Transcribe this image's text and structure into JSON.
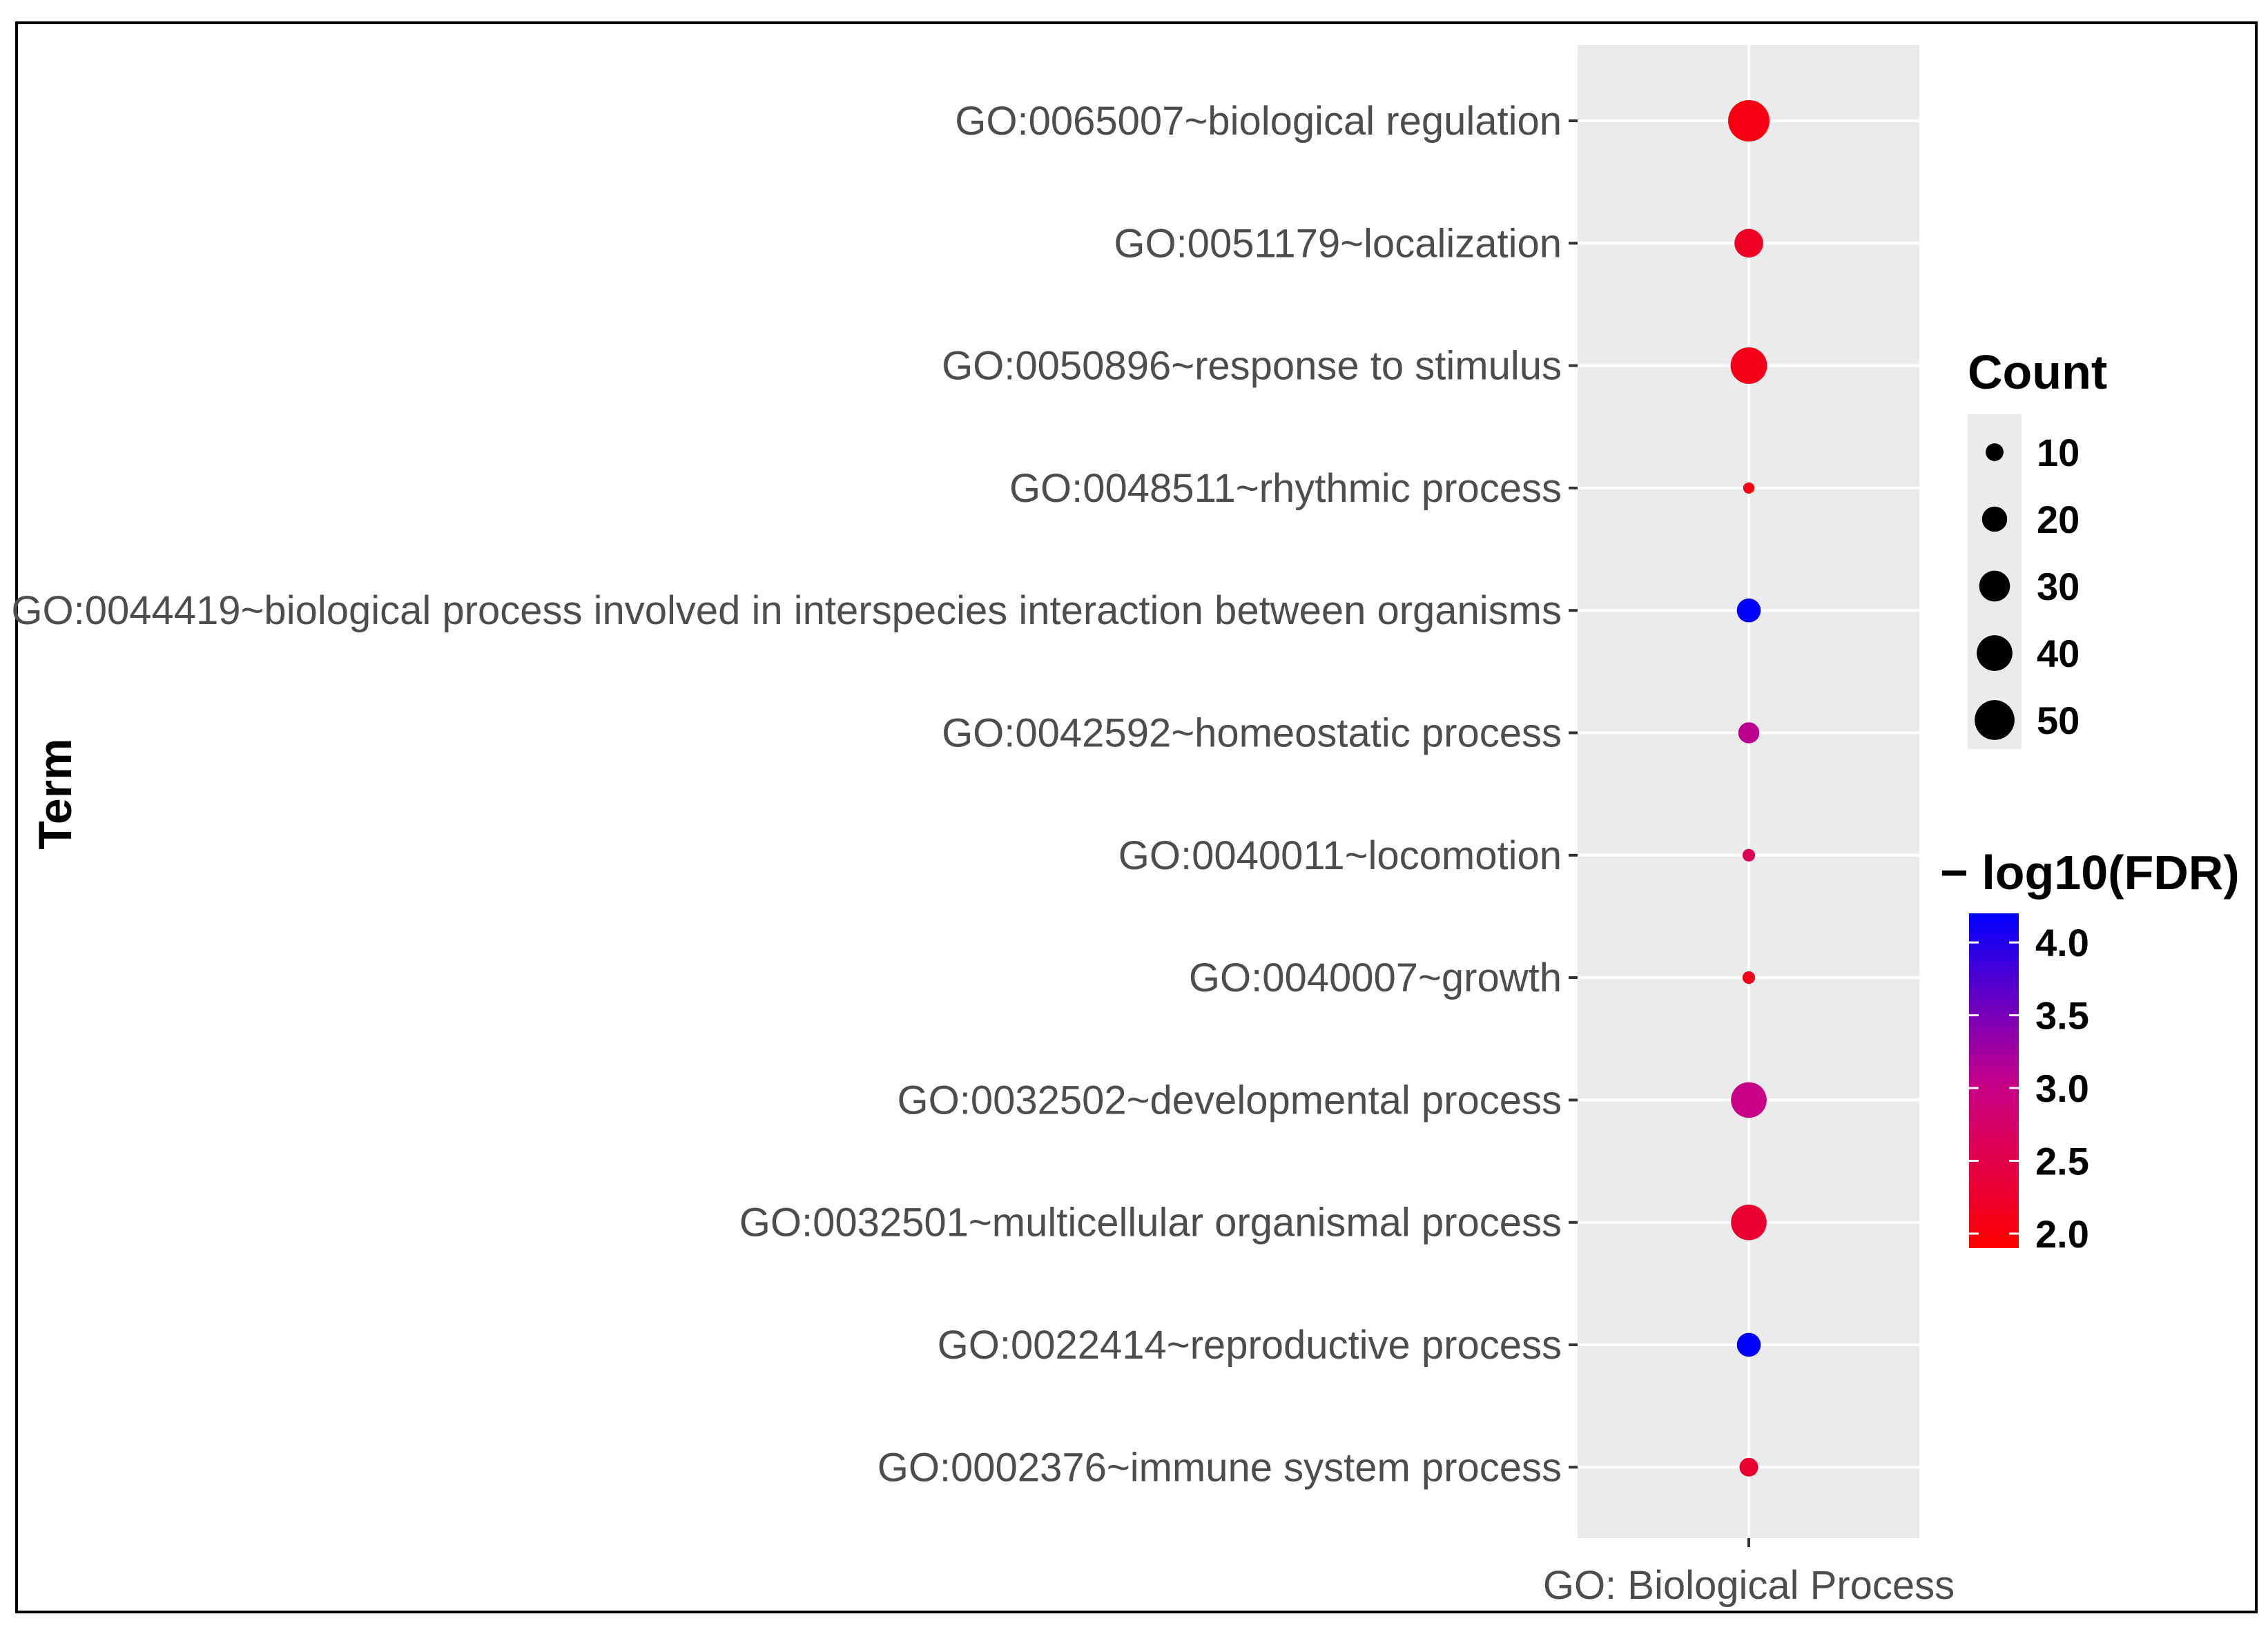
{
  "chart_data": {
    "type": "scatter",
    "x_categories": [
      "GO: Biological Process"
    ],
    "y_categories": [
      "GO:0065007~biological regulation",
      "GO:0051179~localization",
      "GO:0050896~response to stimulus",
      "GO:0048511~rhythmic process",
      "GO:0044419~biological process involved in interspecies interaction between organisms",
      "GO:0042592~homeostatic process",
      "GO:0040011~locomotion",
      "GO:0040007~growth",
      "GO:0032502~developmental process",
      "GO:0032501~multicellular organismal process",
      "GO:0022414~reproductive process",
      "GO:0002376~immune system process"
    ],
    "points": [
      {
        "term": "GO:0065007~biological regulation",
        "count": 54,
        "neg_log10_fdr": 2.05
      },
      {
        "term": "GO:0051179~localization",
        "count": 26,
        "neg_log10_fdr": 2.2
      },
      {
        "term": "GO:0050896~response to stimulus",
        "count": 42,
        "neg_log10_fdr": 2.1
      },
      {
        "term": "GO:0048511~rhythmic process",
        "count": 4,
        "neg_log10_fdr": 2.05
      },
      {
        "term": "GO:0044419~biological process involved in interspecies interaction between organisms",
        "count": 18,
        "neg_log10_fdr": 4.2
      },
      {
        "term": "GO:0042592~homeostatic process",
        "count": 14,
        "neg_log10_fdr": 3.1
      },
      {
        "term": "GO:0040011~locomotion",
        "count": 5,
        "neg_log10_fdr": 2.6
      },
      {
        "term": "GO:0040007~growth",
        "count": 5,
        "neg_log10_fdr": 2.1
      },
      {
        "term": "GO:0032502~developmental process",
        "count": 40,
        "neg_log10_fdr": 3.0
      },
      {
        "term": "GO:0032501~multicellular organismal process",
        "count": 40,
        "neg_log10_fdr": 2.3
      },
      {
        "term": "GO:0022414~reproductive process",
        "count": 18,
        "neg_log10_fdr": 4.2
      },
      {
        "term": "GO:0002376~immune system process",
        "count": 11,
        "neg_log10_fdr": 2.3
      }
    ],
    "ylabel": "Term",
    "xlabel": "",
    "size_legend": {
      "title": "Count",
      "values": [
        10,
        20,
        30,
        40,
        50
      ]
    },
    "color_legend": {
      "title": "− log10(FDR)",
      "min": 1.9,
      "max": 4.2,
      "ticks": [
        "4.0",
        "3.5",
        "3.0",
        "2.5",
        "2.0"
      ],
      "low_color": "#ff0000",
      "high_color": "#0000ff"
    },
    "panel_color": "#ebebeb",
    "grid": true
  }
}
